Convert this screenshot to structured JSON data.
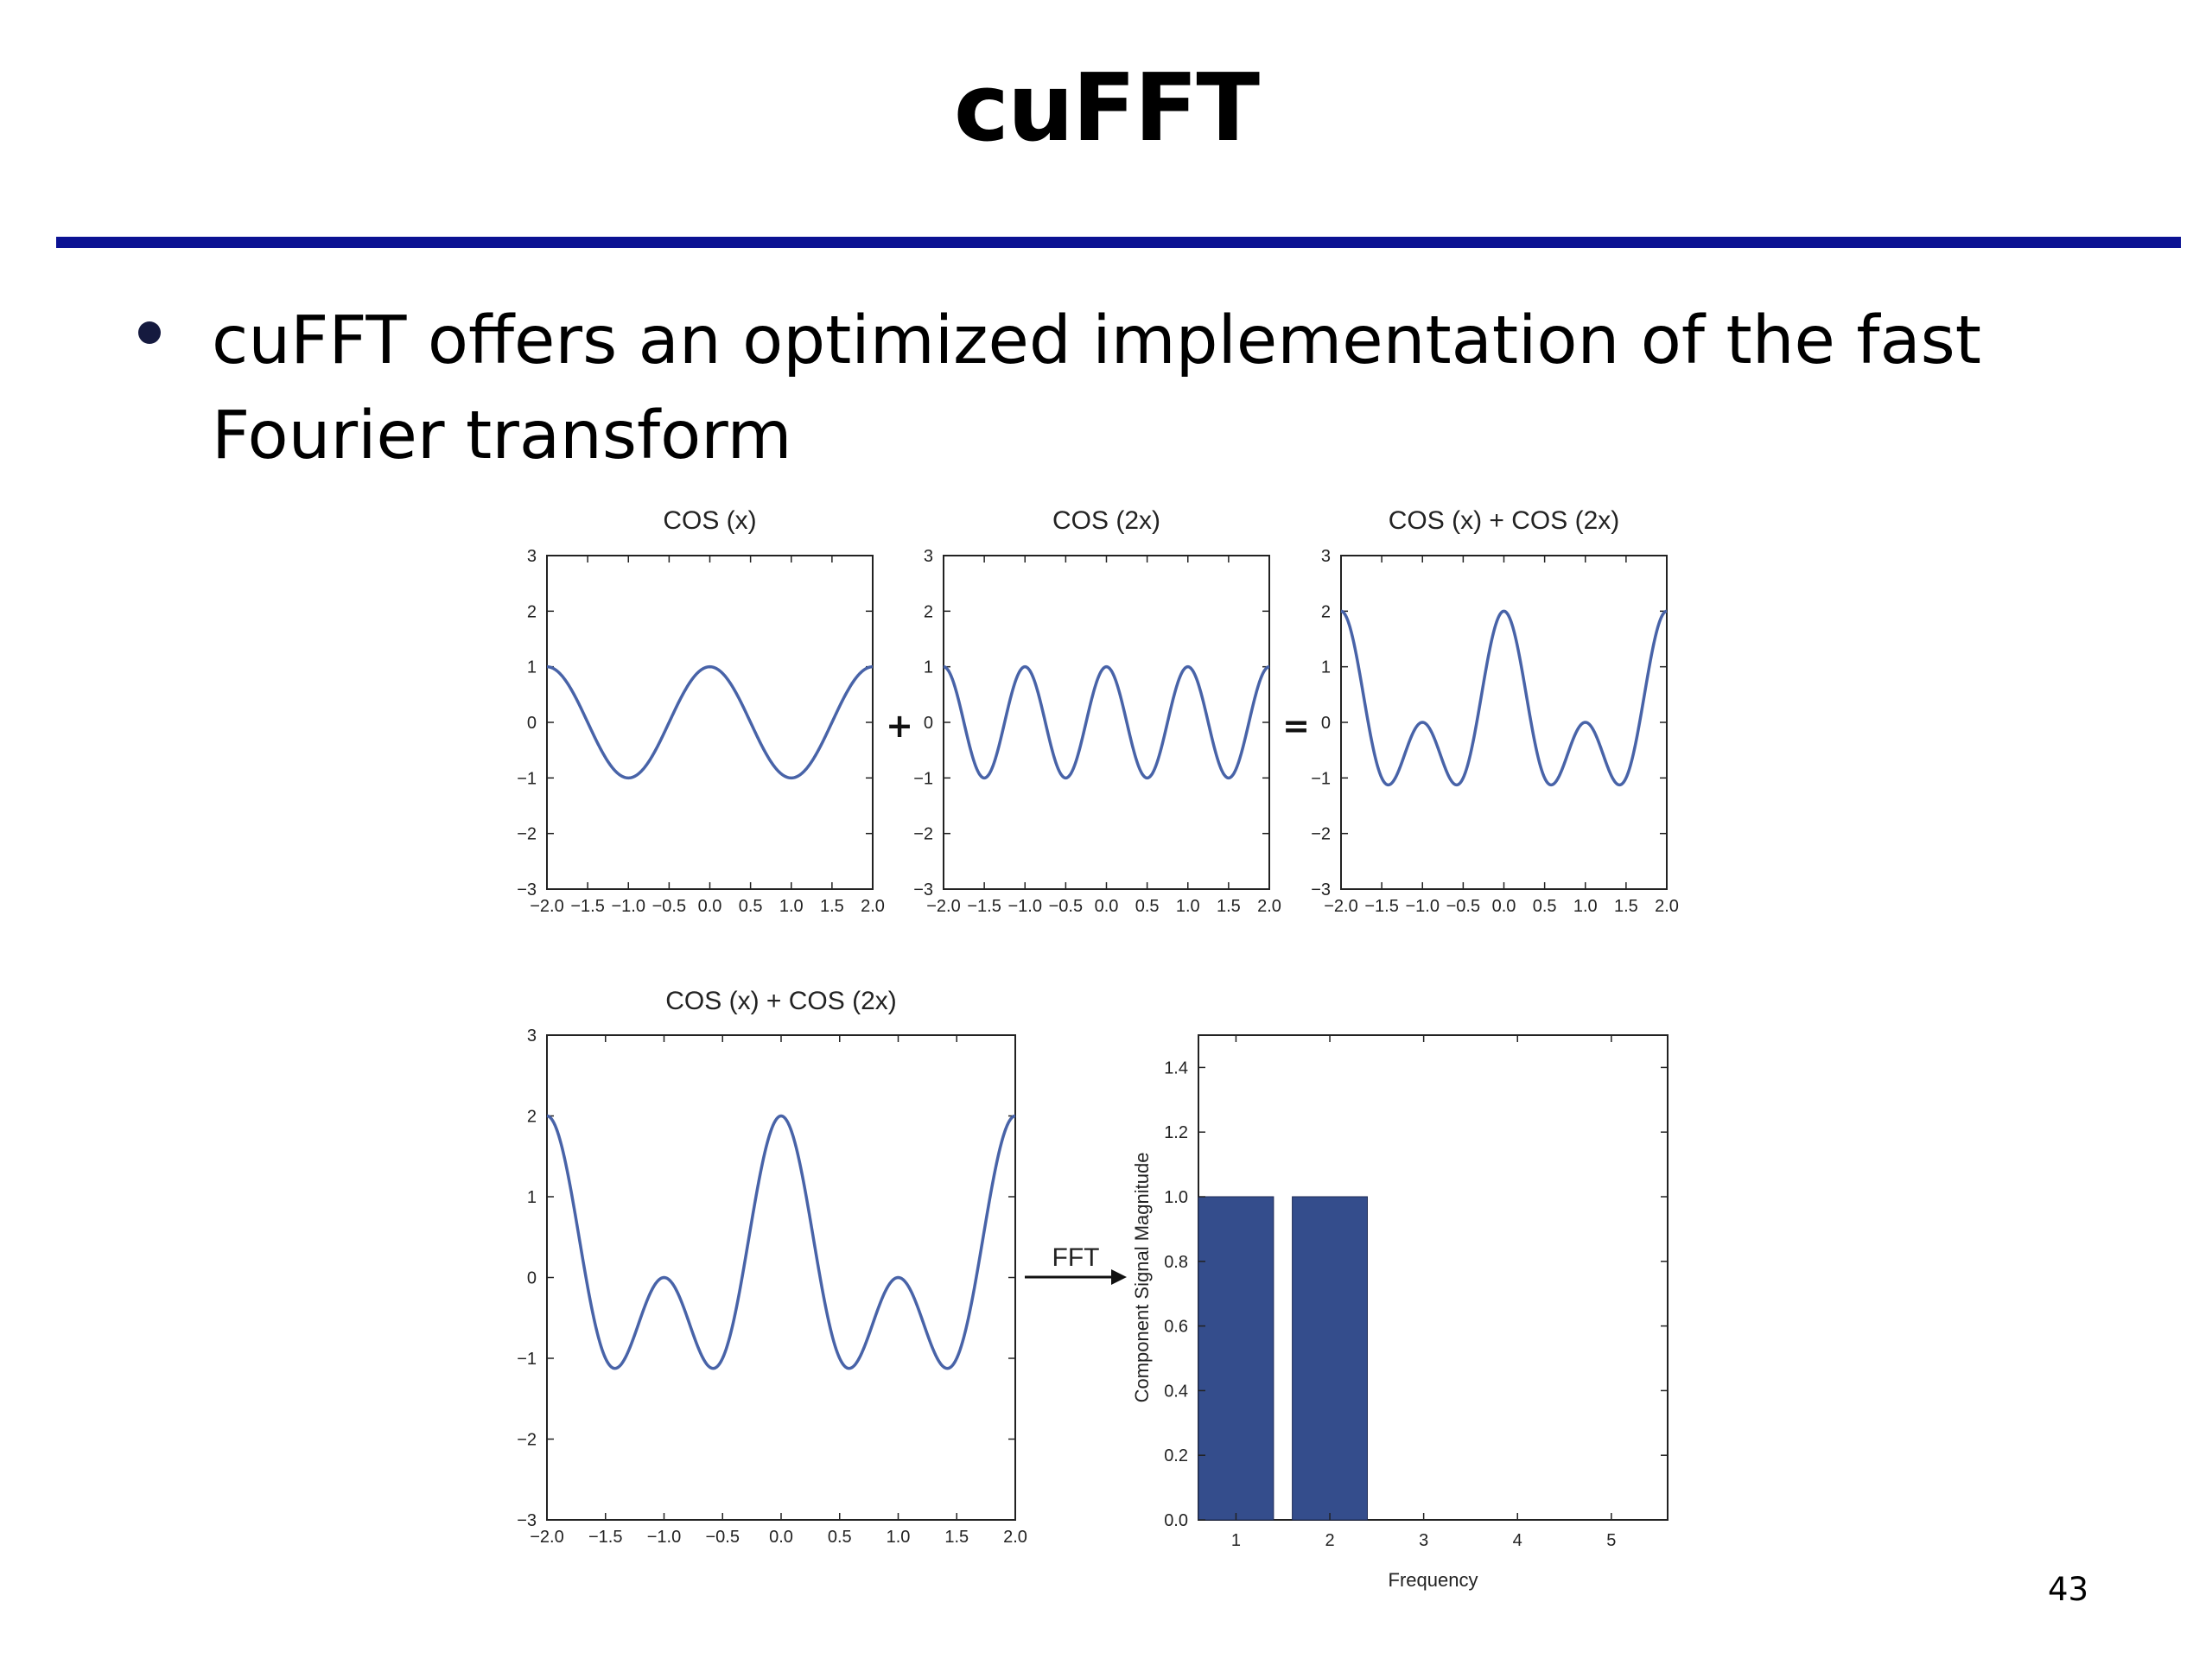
{
  "slide": {
    "title": "cuFFT",
    "bullet": "cuFFT offers an optimized implementation of the fast Fourier transform",
    "page_number": "43"
  },
  "colors": {
    "rule": "#0b1293",
    "curve": "#4863a8",
    "bar": "#344d8c"
  },
  "figure": {
    "plus_symbol": "+",
    "equals_symbol": "=",
    "fft_arrow_label": "FFT"
  },
  "chart_data": [
    {
      "type": "line",
      "title": "COS (x)",
      "function": "cos(x*pi)",
      "series": [
        {
          "x": [
            -2.0,
            -1.5,
            -1.0,
            -0.5,
            0.0,
            0.5,
            1.0,
            1.5,
            2.0
          ],
          "y": [
            1,
            0,
            -1,
            0,
            1,
            0,
            -1,
            0,
            1
          ]
        }
      ],
      "xlim": [
        -2.0,
        2.0
      ],
      "ylim": [
        -3,
        3
      ],
      "xticks": [
        "−2.0",
        "−1.5",
        "−1.0",
        "−0.5",
        "0.0",
        "0.5",
        "1.0",
        "1.5",
        "2.0"
      ],
      "yticks": [
        "3",
        "2",
        "1",
        "0",
        "−1",
        "−2",
        "−3"
      ]
    },
    {
      "type": "line",
      "title": "COS (2x)",
      "function": "cos(2*x*pi)",
      "series": [
        {
          "x": [
            -2.0,
            -1.75,
            -1.5,
            -1.25,
            -1.0,
            -0.75,
            -0.5,
            -0.25,
            0.0,
            0.25,
            0.5,
            0.75,
            1.0,
            1.25,
            1.5,
            1.75,
            2.0
          ],
          "y": [
            1,
            0,
            -1,
            0,
            1,
            0,
            -1,
            0,
            1,
            0,
            -1,
            0,
            1,
            0,
            -1,
            0,
            1
          ]
        }
      ],
      "xlim": [
        -2.0,
        2.0
      ],
      "ylim": [
        -3,
        3
      ],
      "xticks": [
        "−2.0",
        "−1.5",
        "−1.0",
        "−0.5",
        "0.0",
        "0.5",
        "1.0",
        "1.5",
        "2.0"
      ],
      "yticks": [
        "3",
        "2",
        "1",
        "0",
        "−1",
        "−2",
        "−3"
      ]
    },
    {
      "type": "line",
      "title": "COS (x) + COS (2x)",
      "function": "cos(x*pi)+cos(2*x*pi)",
      "series": [
        {
          "x": [
            -2.0,
            -1.5,
            -1.0,
            -0.5,
            0.0,
            0.5,
            1.0,
            1.5,
            2.0
          ],
          "y": [
            2,
            -1,
            0,
            -1,
            2,
            -1,
            0,
            -1,
            2
          ]
        }
      ],
      "xlim": [
        -2.0,
        2.0
      ],
      "ylim": [
        -3,
        3
      ],
      "xticks": [
        "−2.0",
        "−1.5",
        "−1.0",
        "−0.5",
        "0.0",
        "0.5",
        "1.0",
        "1.5",
        "2.0"
      ],
      "yticks": [
        "3",
        "2",
        "1",
        "0",
        "−1",
        "−2",
        "−3"
      ]
    },
    {
      "type": "line",
      "title": "COS (x) + COS (2x)",
      "function": "cos(x*pi)+cos(2*x*pi)",
      "series": [
        {
          "x": [
            -2.0,
            -1.5,
            -1.0,
            -0.5,
            0.0,
            0.5,
            1.0,
            1.5,
            2.0
          ],
          "y": [
            2,
            -1,
            0,
            -1,
            2,
            -1,
            0,
            -1,
            2
          ]
        }
      ],
      "xlim": [
        -2.0,
        2.0
      ],
      "ylim": [
        -3,
        3
      ],
      "xticks": [
        "−2.0",
        "−1.5",
        "−1.0",
        "−0.5",
        "0.0",
        "0.5",
        "1.0",
        "1.5",
        "2.0"
      ],
      "yticks": [
        "3",
        "2",
        "1",
        "0",
        "−1",
        "−2",
        "−3"
      ]
    },
    {
      "type": "bar",
      "title": "",
      "categories": [
        "1",
        "2",
        "3",
        "4",
        "5"
      ],
      "values": [
        1.0,
        1.0,
        0,
        0,
        0
      ],
      "xlabel": "Frequency",
      "ylabel": "Component Signal Magnitude",
      "ylim": [
        0.0,
        1.5
      ],
      "yticks": [
        "0.0",
        "0.2",
        "0.4",
        "0.6",
        "0.8",
        "1.0",
        "1.2",
        "1.4"
      ],
      "grid": false
    }
  ]
}
